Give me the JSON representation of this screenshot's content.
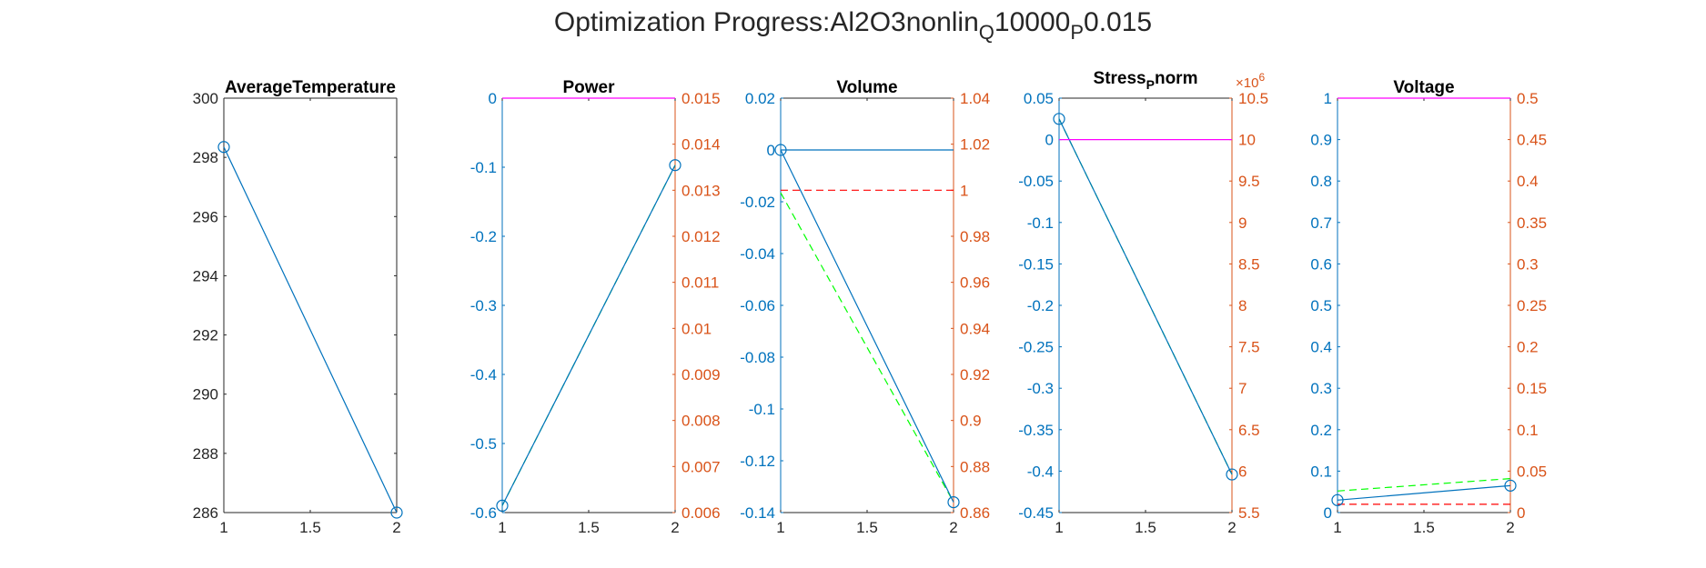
{
  "figure": {
    "title_prefix": "Optimization Progress:Al2O3nonlin",
    "title_sub1": "Q",
    "title_mid": "10000",
    "title_sub2": "P",
    "title_suffix": "0.015"
  },
  "colors": {
    "blue": "#0072BD",
    "orange": "#D95319",
    "green": "#00FF00",
    "red": "#FF0000",
    "magenta": "#FF00FF",
    "axis": "#262626"
  },
  "chart_data": [
    {
      "type": "line",
      "title": "AverageTemperature",
      "xlim": [
        1,
        2
      ],
      "x_ticks": [
        "1",
        "1.5",
        "2"
      ],
      "left_axis": {
        "ylim": [
          286,
          300
        ],
        "ticks": [
          "286",
          "288",
          "290",
          "292",
          "294",
          "296",
          "298",
          "300"
        ],
        "color": "black"
      },
      "series": [
        {
          "axis": "left",
          "style": "solid-markers",
          "color": "blue",
          "x": [
            1,
            2
          ],
          "y": [
            298.35,
            286.0
          ]
        }
      ]
    },
    {
      "type": "line",
      "title": "Power",
      "xlim": [
        1,
        2
      ],
      "x_ticks": [
        "1",
        "1.5",
        "2"
      ],
      "left_axis": {
        "ylim": [
          -0.6,
          0
        ],
        "ticks": [
          "-0.6",
          "-0.5",
          "-0.4",
          "-0.3",
          "-0.2",
          "-0.1",
          "0"
        ],
        "color": "blue"
      },
      "right_axis": {
        "ylim": [
          0.006,
          0.015
        ],
        "ticks": [
          "0.006",
          "0.007",
          "0.008",
          "0.009",
          "0.01",
          "0.011",
          "0.012",
          "0.013",
          "0.014",
          "0.015"
        ],
        "color": "orange"
      },
      "series": [
        {
          "axis": "left",
          "style": "dashed",
          "color": "green",
          "x": [
            1,
            2
          ],
          "y": [
            -0.59,
            -0.097
          ]
        },
        {
          "axis": "left",
          "style": "solid-markers",
          "color": "blue",
          "x": [
            1,
            2
          ],
          "y": [
            -0.59,
            -0.097
          ]
        },
        {
          "axis": "right",
          "style": "solid",
          "color": "magenta",
          "x": [
            1,
            2
          ],
          "y": [
            0.015,
            0.015
          ]
        }
      ]
    },
    {
      "type": "line",
      "title": "Volume",
      "xlim": [
        1,
        2
      ],
      "x_ticks": [
        "1",
        "1.5",
        "2"
      ],
      "left_axis": {
        "ylim": [
          -0.14,
          0.02
        ],
        "ticks": [
          "-0.14",
          "-0.12",
          "-0.1",
          "-0.08",
          "-0.06",
          "-0.04",
          "-0.02",
          "0",
          "0.02"
        ],
        "color": "blue"
      },
      "right_axis": {
        "ylim": [
          0.86,
          1.04
        ],
        "ticks": [
          "0.86",
          "0.88",
          "0.9",
          "0.92",
          "0.94",
          "0.96",
          "0.98",
          "1",
          "1.02",
          "1.04"
        ],
        "color": "orange"
      },
      "series": [
        {
          "axis": "right",
          "style": "dashed",
          "color": "red",
          "x": [
            1,
            2
          ],
          "y": [
            1.0,
            1.0
          ]
        },
        {
          "axis": "left",
          "style": "dashed",
          "color": "green",
          "x": [
            1,
            2
          ],
          "y": [
            -0.0165,
            -0.136
          ]
        },
        {
          "axis": "left",
          "style": "solid-markers",
          "color": "blue",
          "x": [
            1,
            2
          ],
          "y": [
            0.0,
            -0.136
          ]
        },
        {
          "axis": "left",
          "style": "solid",
          "color": "blue",
          "x": [
            1,
            2
          ],
          "y": [
            0.0,
            0.0
          ]
        }
      ]
    },
    {
      "type": "line",
      "title_main": "Stress",
      "title_sub": "P",
      "title_tail": "norm",
      "xlim": [
        1,
        2
      ],
      "x_ticks": [
        "1",
        "1.5",
        "2"
      ],
      "left_axis": {
        "ylim": [
          -0.45,
          0.05
        ],
        "ticks": [
          "-0.45",
          "-0.4",
          "-0.35",
          "-0.3",
          "-0.25",
          "-0.2",
          "-0.15",
          "-0.1",
          "-0.05",
          "0",
          "0.05"
        ],
        "color": "blue"
      },
      "right_axis": {
        "ylim": [
          5.5,
          10.5
        ],
        "ticks": [
          "5.5",
          "6",
          "6.5",
          "7",
          "7.5",
          "8",
          "8.5",
          "9",
          "9.5",
          "10",
          "10.5"
        ],
        "color": "orange",
        "exponent_base": "×10",
        "exponent_power": "6"
      },
      "series": [
        {
          "axis": "left",
          "style": "dashed",
          "color": "green",
          "x": [
            1,
            2
          ],
          "y": [
            0.025,
            -0.404
          ]
        },
        {
          "axis": "left",
          "style": "solid-markers",
          "color": "blue",
          "x": [
            1,
            2
          ],
          "y": [
            0.025,
            -0.404
          ]
        },
        {
          "axis": "left",
          "style": "solid",
          "color": "magenta",
          "x": [
            1,
            2
          ],
          "y": [
            0.0,
            0.0
          ]
        }
      ]
    },
    {
      "type": "line",
      "title": "Voltage",
      "xlim": [
        1,
        2
      ],
      "x_ticks": [
        "1",
        "1.5",
        "2"
      ],
      "left_axis": {
        "ylim": [
          0,
          1
        ],
        "ticks": [
          "0",
          "0.1",
          "0.2",
          "0.3",
          "0.4",
          "0.5",
          "0.6",
          "0.7",
          "0.8",
          "0.9",
          "1"
        ],
        "color": "blue"
      },
      "right_axis": {
        "ylim": [
          0,
          0.5
        ],
        "ticks": [
          "0",
          "0.05",
          "0.1",
          "0.15",
          "0.2",
          "0.25",
          "0.3",
          "0.35",
          "0.4",
          "0.45",
          "0.5"
        ],
        "color": "orange"
      },
      "series": [
        {
          "axis": "right",
          "style": "dashed",
          "color": "red",
          "x": [
            1,
            2
          ],
          "y": [
            0.01,
            0.01
          ]
        },
        {
          "axis": "left",
          "style": "dashed",
          "color": "green",
          "x": [
            1,
            2
          ],
          "y": [
            0.052,
            0.082
          ]
        },
        {
          "axis": "left",
          "style": "solid-markers",
          "color": "blue",
          "x": [
            1,
            2
          ],
          "y": [
            0.03,
            0.065
          ]
        },
        {
          "axis": "right",
          "style": "solid",
          "color": "magenta",
          "x": [
            1,
            2
          ],
          "y": [
            0.5,
            0.5
          ]
        }
      ]
    }
  ]
}
